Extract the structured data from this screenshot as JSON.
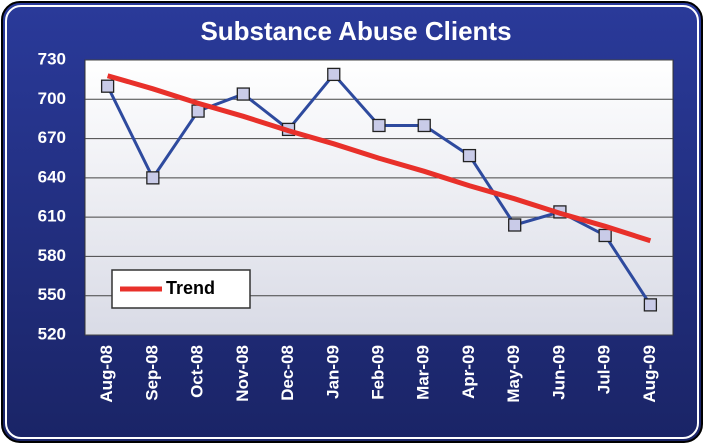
{
  "chart_data": {
    "type": "line",
    "title": "Substance Abuse Clients",
    "categories": [
      "Aug-08",
      "Sep-08",
      "Oct-08",
      "Nov-08",
      "Dec-08",
      "Jan-09",
      "Feb-09",
      "Mar-09",
      "Apr-09",
      "May-09",
      "Jun-09",
      "Jul-09",
      "Aug-09"
    ],
    "series": [
      {
        "color": "#2e4a9e",
        "values": [
          710,
          640,
          691,
          704,
          677,
          719,
          680,
          680,
          657,
          604,
          614,
          596,
          543
        ]
      },
      {
        "name": "Trend",
        "color": "#e8302a",
        "values": [
          718,
          708,
          697,
          687,
          676,
          666,
          655,
          645,
          634,
          624,
          613,
          603,
          592
        ]
      }
    ],
    "ylim": [
      520,
      730
    ],
    "yticks": [
      520,
      550,
      580,
      610,
      640,
      670,
      700,
      730
    ],
    "grid": true,
    "legend": "lower left"
  }
}
